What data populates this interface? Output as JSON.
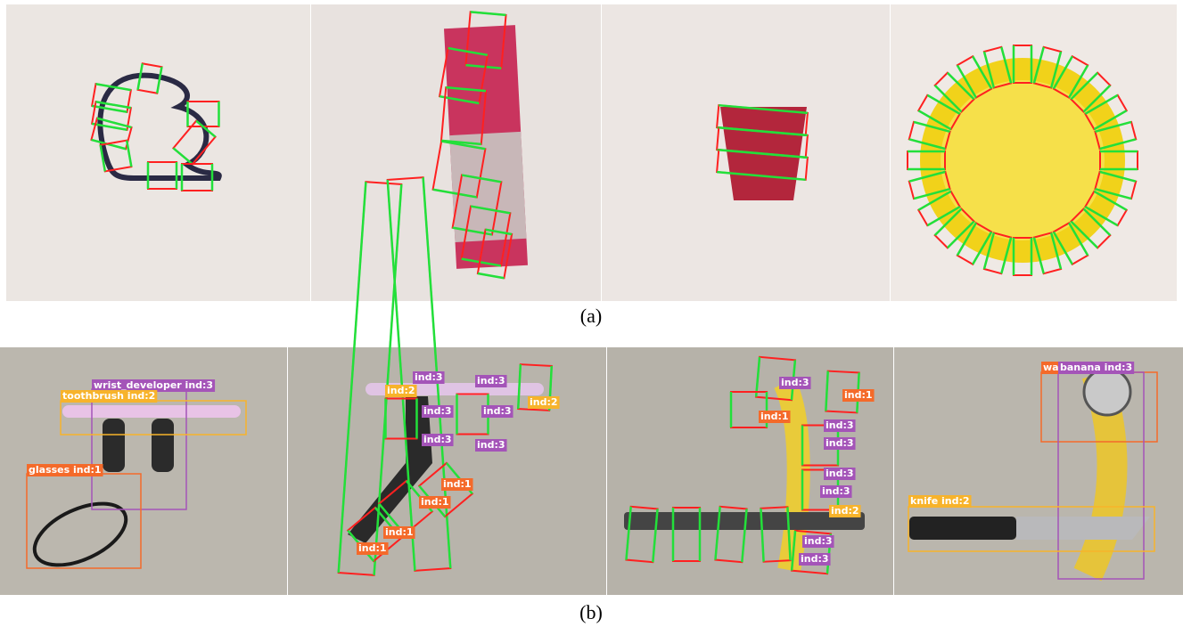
{
  "figure": {
    "captions": {
      "a": "(a)",
      "b": "(b)"
    },
    "panels_b": [
      {
        "labels": [
          "wrist_developer ind:3",
          "toothbrush ind:2",
          "glasses ind:1"
        ]
      },
      {
        "labels": [
          "ind:3",
          "ind:3",
          "ind:2",
          "ind:2",
          "ind:3",
          "ind:3",
          "ind:3",
          "ind:3",
          "ind:1",
          "ind:1",
          "ind:1",
          "ind:1"
        ]
      },
      {
        "labels": [
          "ind:3",
          "ind:1",
          "ind:1",
          "ind:3",
          "ind:3",
          "ind:3",
          "ind:3",
          "ind:2",
          "ind:3",
          "ind:3"
        ]
      },
      {
        "labels": [
          "wa",
          "banana ind:3",
          "knife ind:2"
        ]
      }
    ]
  }
}
